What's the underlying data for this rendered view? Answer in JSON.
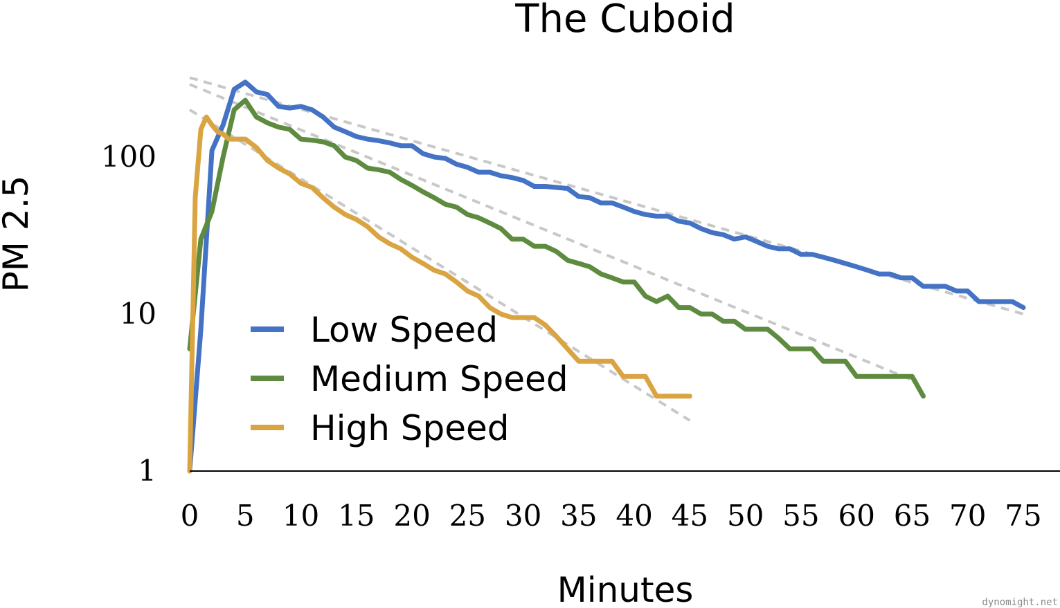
{
  "chart_data": {
    "type": "line",
    "title": "The Cuboid",
    "xlabel": "Minutes",
    "ylabel": "PM 2.5",
    "xlim": [
      0,
      75
    ],
    "ylim": [
      1,
      500
    ],
    "y_scale": "log",
    "x_ticks": [
      0,
      5,
      10,
      15,
      20,
      25,
      30,
      35,
      40,
      45,
      50,
      55,
      60,
      65,
      70,
      75
    ],
    "x_tick_labels": [
      "0",
      "5",
      "10",
      "15",
      "20",
      "25",
      "30",
      "35",
      "40",
      "45",
      "50",
      "55",
      "60",
      "65",
      "70",
      "75"
    ],
    "y_ticks": [
      1,
      10,
      100
    ],
    "y_tick_labels": [
      "1",
      "10",
      "100"
    ],
    "grid": false,
    "legend_position": "lower-left inside plot",
    "watermark": "dynomight.net",
    "series": [
      {
        "name": "Low Speed",
        "color": "#4472c4",
        "x": [
          0,
          1,
          2,
          3,
          4,
          5,
          6,
          7,
          8,
          9,
          10,
          11,
          12,
          13,
          14,
          15,
          16,
          17,
          18,
          19,
          20,
          21,
          22,
          23,
          24,
          25,
          26,
          27,
          28,
          29,
          30,
          31,
          32,
          33,
          34,
          35,
          36,
          37,
          38,
          39,
          40,
          41,
          42,
          43,
          44,
          45,
          46,
          47,
          48,
          49,
          50,
          51,
          52,
          53,
          54,
          55,
          56,
          57,
          58,
          59,
          60,
          61,
          62,
          63,
          64,
          65,
          66,
          67,
          68,
          69,
          70,
          71,
          72,
          73,
          74,
          75
        ],
        "values": [
          1,
          8,
          110,
          160,
          270,
          300,
          260,
          250,
          210,
          205,
          210,
          200,
          180,
          155,
          145,
          135,
          130,
          127,
          123,
          118,
          118,
          105,
          100,
          98,
          90,
          86,
          80,
          80,
          76,
          74,
          71,
          65,
          65,
          64,
          63,
          56,
          55,
          51,
          51,
          48,
          45,
          43,
          42,
          42,
          39,
          38,
          35,
          33,
          32,
          30,
          31,
          29,
          27,
          26,
          26,
          24,
          24,
          23,
          22,
          21,
          20,
          19,
          18,
          18,
          17,
          17,
          15,
          15,
          15,
          14,
          14,
          12,
          12,
          12,
          12,
          11
        ]
      },
      {
        "name": "Medium Speed",
        "color": "#5e8b3f",
        "x": [
          0,
          1,
          2,
          3,
          4,
          5,
          6,
          7,
          8,
          9,
          10,
          11,
          12,
          13,
          14,
          15,
          16,
          17,
          18,
          19,
          20,
          21,
          22,
          23,
          24,
          25,
          26,
          27,
          28,
          29,
          30,
          31,
          32,
          33,
          34,
          35,
          36,
          37,
          38,
          39,
          40,
          41,
          42,
          43,
          44,
          45,
          46,
          47,
          48,
          49,
          50,
          51,
          52,
          53,
          54,
          55,
          56,
          57,
          58,
          59,
          60,
          61,
          62,
          63,
          64,
          65,
          66
        ],
        "values": [
          6,
          30,
          45,
          100,
          200,
          230,
          180,
          165,
          155,
          150,
          130,
          128,
          125,
          118,
          100,
          95,
          85,
          83,
          80,
          72,
          66,
          60,
          55,
          50,
          48,
          43,
          41,
          38,
          35,
          30,
          30,
          27,
          27,
          25,
          22,
          21,
          20,
          18,
          17,
          16,
          16,
          13,
          12,
          13,
          11,
          11,
          10,
          10,
          9,
          9,
          8,
          8,
          8,
          7,
          6,
          6,
          6,
          5,
          5,
          5,
          4,
          4,
          4,
          4,
          4,
          4,
          3
        ]
      },
      {
        "name": "High Speed",
        "color": "#d9a441",
        "x": [
          0,
          0.5,
          1,
          1.5,
          2,
          2.5,
          3,
          3.5,
          4,
          4.5,
          5,
          6,
          7,
          8,
          9,
          10,
          11,
          12,
          13,
          14,
          15,
          16,
          17,
          18,
          19,
          20,
          21,
          22,
          23,
          24,
          25,
          26,
          27,
          28,
          29,
          30,
          31,
          32,
          33,
          34,
          35,
          36,
          37,
          38,
          39,
          40,
          41,
          42,
          43,
          44,
          45
        ],
        "values": [
          1,
          55,
          150,
          180,
          160,
          145,
          140,
          130,
          130,
          130,
          130,
          115,
          95,
          85,
          78,
          68,
          64,
          55,
          48,
          43,
          40,
          36,
          31,
          28,
          26,
          23,
          21,
          19,
          18,
          16,
          14,
          13,
          11,
          10,
          9.5,
          9.5,
          9.5,
          8.5,
          7.2,
          6,
          5,
          5,
          5,
          5,
          4,
          4,
          4,
          3,
          3,
          3,
          3
        ]
      }
    ],
    "trend_lines": [
      {
        "series": "Low Speed",
        "x": [
          0,
          75
        ],
        "values": [
          320,
          10
        ]
      },
      {
        "series": "Medium Speed",
        "x": [
          0,
          65
        ],
        "values": [
          290,
          3.8
        ]
      },
      {
        "series": "High Speed",
        "x": [
          0,
          45
        ],
        "values": [
          200,
          2.1
        ]
      }
    ]
  }
}
